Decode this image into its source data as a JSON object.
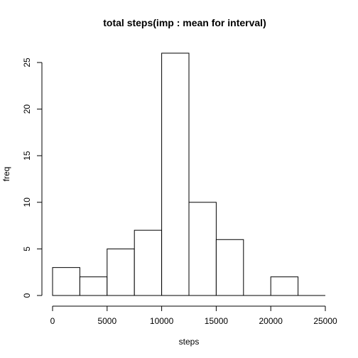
{
  "chart_data": {
    "type": "bar",
    "title": "total steps(imp : mean for interval)",
    "xlabel": "steps",
    "ylabel": "freq",
    "xlim": [
      0,
      25000
    ],
    "ylim": [
      0,
      26
    ],
    "x_ticks": [
      0,
      5000,
      10000,
      15000,
      20000,
      25000
    ],
    "y_ticks": [
      0,
      5,
      10,
      15,
      20,
      25
    ],
    "bins": [
      {
        "from": 0,
        "to": 2500,
        "value": 3
      },
      {
        "from": 2500,
        "to": 5000,
        "value": 2
      },
      {
        "from": 5000,
        "to": 7500,
        "value": 5
      },
      {
        "from": 7500,
        "to": 10000,
        "value": 7
      },
      {
        "from": 10000,
        "to": 12500,
        "value": 26
      },
      {
        "from": 12500,
        "to": 15000,
        "value": 10
      },
      {
        "from": 15000,
        "to": 17500,
        "value": 6
      },
      {
        "from": 17500,
        "to": 20000,
        "value": 0
      },
      {
        "from": 20000,
        "to": 22500,
        "value": 2
      },
      {
        "from": 22500,
        "to": 25000,
        "value": 0
      }
    ],
    "grid": false,
    "legend": "none"
  }
}
